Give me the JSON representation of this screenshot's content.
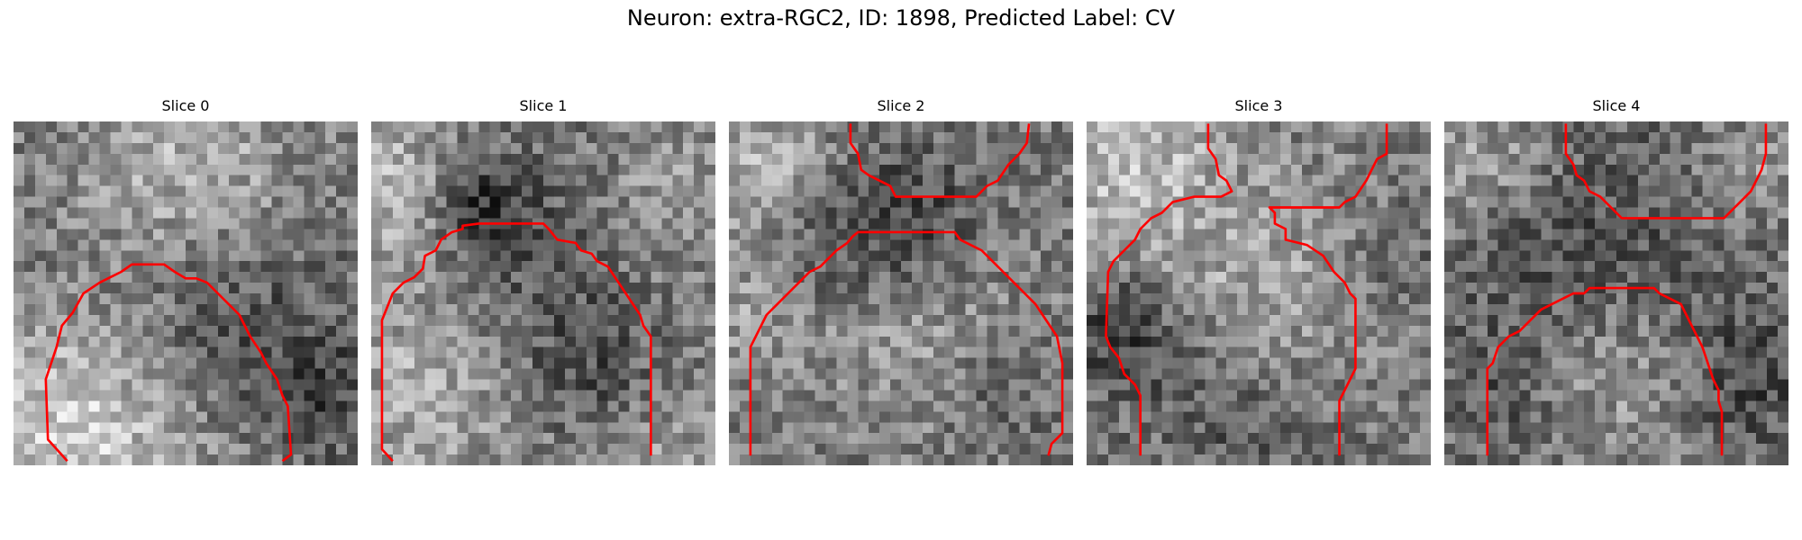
{
  "figure": {
    "title": "Neuron: extra-RGC2, ID: 1898, Predicted Label: CV"
  },
  "colors": {
    "contour": "#ff0000",
    "background": "#ffffff"
  },
  "slices": [
    {
      "title": "Slice 0"
    },
    {
      "title": "Slice 1"
    },
    {
      "title": "Slice 2"
    },
    {
      "title": "Slice 3"
    },
    {
      "title": "Slice 4"
    }
  ]
}
